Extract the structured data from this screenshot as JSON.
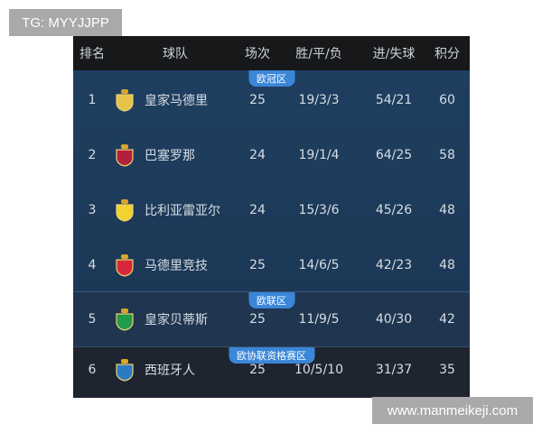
{
  "watermarks": {
    "top": "TG: MYYJJPP",
    "bottom": "www.manmeikeji.com"
  },
  "header": {
    "rank": "排名",
    "team": "球队",
    "played": "场次",
    "wdl": "胜/平/负",
    "goals": "进/失球",
    "points": "积分"
  },
  "zones": {
    "ucl": "欧冠区",
    "uel": "欧联区",
    "uecl": "欧协联资格赛区"
  },
  "rows": [
    {
      "rank": "1",
      "team": "皇家马德里",
      "played": "25",
      "wdl": "19/3/3",
      "goals": "54/21",
      "points": "60",
      "logo": "real-madrid-crest",
      "color": "#e6c34a"
    },
    {
      "rank": "2",
      "team": "巴塞罗那",
      "played": "24",
      "wdl": "19/1/4",
      "goals": "64/25",
      "points": "58",
      "logo": "barcelona-crest",
      "color": "#b0213d"
    },
    {
      "rank": "3",
      "team": "比利亚雷亚尔",
      "played": "24",
      "wdl": "15/3/6",
      "goals": "45/26",
      "points": "48",
      "logo": "villarreal-crest",
      "color": "#f2d22e"
    },
    {
      "rank": "4",
      "team": "马德里竞技",
      "played": "25",
      "wdl": "14/6/5",
      "goals": "42/23",
      "points": "48",
      "logo": "atletico-crest",
      "color": "#d6283a"
    },
    {
      "rank": "5",
      "team": "皇家贝蒂斯",
      "played": "25",
      "wdl": "11/9/5",
      "goals": "40/30",
      "points": "42",
      "logo": "betis-crest",
      "color": "#1f9b4a"
    },
    {
      "rank": "6",
      "team": "西班牙人",
      "played": "25",
      "wdl": "10/5/10",
      "goals": "31/37",
      "points": "35",
      "logo": "espanyol-crest",
      "color": "#2a7bc4"
    }
  ]
}
